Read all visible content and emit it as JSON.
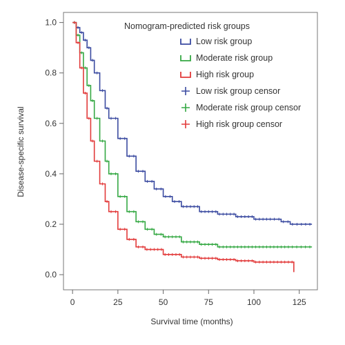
{
  "chart_data": {
    "type": "line",
    "xlabel": "Survival time (months)",
    "ylabel": "Disease-specific survival",
    "xlim": [
      -5,
      135
    ],
    "ylim": [
      -0.06,
      1.04
    ],
    "xticks": [
      0,
      25,
      50,
      75,
      100,
      125
    ],
    "yticks": [
      0.0,
      0.2,
      0.4,
      0.6,
      0.8,
      1.0
    ],
    "xtick_labels": [
      "0",
      "25",
      "50",
      "75",
      "100",
      "125"
    ],
    "ytick_labels": [
      "0.0",
      "0.2",
      "0.4",
      "0.6",
      "0.8",
      "1.0"
    ],
    "grid": false,
    "legend": {
      "title": "Nomogram-predicted risk groups",
      "position": "top-right",
      "entries": [
        {
          "label": "Low risk group",
          "marker": "step",
          "color": "#3a4aa0"
        },
        {
          "label": "Moderate risk group",
          "marker": "step",
          "color": "#34a843"
        },
        {
          "label": "High risk group",
          "marker": "step",
          "color": "#e23a3a"
        },
        {
          "label": "Low risk group censor",
          "marker": "plus",
          "color": "#3a4aa0"
        },
        {
          "label": "Moderate risk group censor",
          "marker": "plus",
          "color": "#34a843"
        },
        {
          "label": "High risk group censor",
          "marker": "plus",
          "color": "#e23a3a"
        }
      ]
    },
    "series": [
      {
        "name": "Low risk group",
        "color": "#3a4aa0",
        "x": [
          0,
          2,
          4,
          6,
          8,
          10,
          12,
          15,
          18,
          20,
          25,
          30,
          35,
          40,
          45,
          50,
          55,
          60,
          70,
          80,
          90,
          100,
          110,
          115,
          120,
          125,
          132
        ],
        "y": [
          1.0,
          0.98,
          0.96,
          0.93,
          0.9,
          0.85,
          0.8,
          0.73,
          0.66,
          0.62,
          0.54,
          0.47,
          0.41,
          0.37,
          0.34,
          0.31,
          0.29,
          0.27,
          0.25,
          0.24,
          0.23,
          0.22,
          0.22,
          0.21,
          0.2,
          0.2,
          0.2
        ]
      },
      {
        "name": "Moderate risk group",
        "color": "#34a843",
        "x": [
          0,
          2,
          4,
          6,
          8,
          10,
          12,
          15,
          18,
          20,
          25,
          30,
          35,
          40,
          45,
          50,
          60,
          70,
          80,
          90,
          100,
          110,
          120,
          132
        ],
        "y": [
          1.0,
          0.95,
          0.88,
          0.82,
          0.75,
          0.69,
          0.62,
          0.53,
          0.45,
          0.4,
          0.31,
          0.25,
          0.21,
          0.18,
          0.16,
          0.15,
          0.13,
          0.12,
          0.11,
          0.11,
          0.11,
          0.11,
          0.11,
          0.11
        ]
      },
      {
        "name": "High risk group",
        "color": "#e23a3a",
        "x": [
          0,
          2,
          4,
          6,
          8,
          10,
          12,
          15,
          18,
          20,
          25,
          30,
          35,
          40,
          50,
          60,
          70,
          80,
          90,
          100,
          110,
          120,
          122
        ],
        "y": [
          1.0,
          0.92,
          0.82,
          0.72,
          0.62,
          0.53,
          0.45,
          0.36,
          0.29,
          0.25,
          0.18,
          0.14,
          0.11,
          0.1,
          0.08,
          0.07,
          0.065,
          0.06,
          0.055,
          0.05,
          0.05,
          0.05,
          0.01
        ]
      }
    ]
  }
}
